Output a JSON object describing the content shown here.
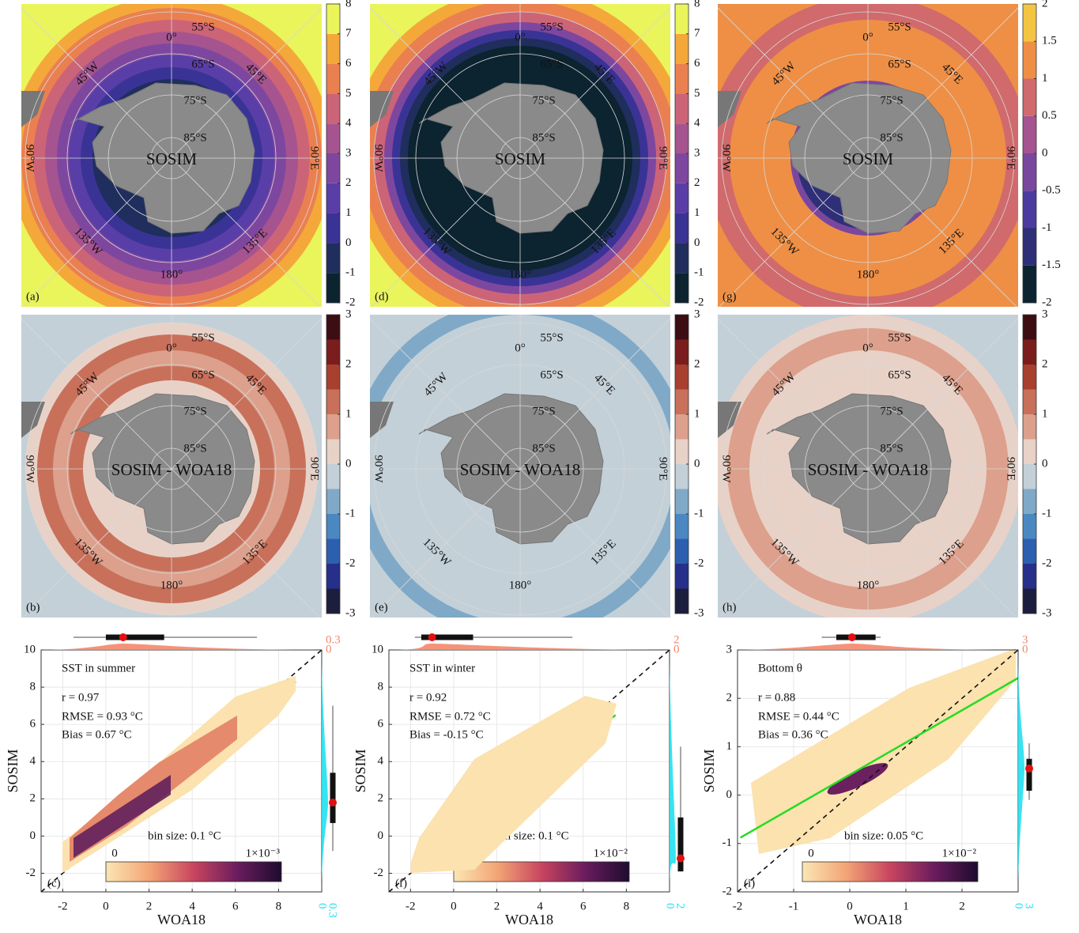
{
  "chart_data": [
    {
      "type": "map",
      "label": "(a)",
      "center_text": "SOSIM",
      "lat_labels": [
        "55°S",
        "65°S",
        "75°S",
        "85°S"
      ],
      "lon_labels": [
        "0°",
        "45°E",
        "90°E",
        "135°E",
        "180°",
        "135°W",
        "90°W",
        "45°W"
      ],
      "colorbar": {
        "ylim": [
          -2,
          8
        ],
        "yticks": [
          -2,
          -1,
          0,
          1,
          2,
          3,
          4,
          5,
          6,
          7,
          8
        ],
        "colors": [
          "#0c2330",
          "#1f2e5c",
          "#3a3396",
          "#5a3ea8",
          "#7e479f",
          "#a55490",
          "#cc6478",
          "#ea8050",
          "#f4a83a",
          "#e9f55b"
        ]
      }
    },
    {
      "type": "map",
      "label": "(b)",
      "center_text": "SOSIM - WOA18",
      "lat_labels": [
        "55°S",
        "65°S",
        "75°S",
        "85°S"
      ],
      "lon_labels": [
        "0°",
        "45°E",
        "90°E",
        "135°E",
        "180°",
        "135°W",
        "90°W",
        "45°W"
      ],
      "colorbar": {
        "ylim": [
          -3,
          3
        ],
        "yticks": [
          -3,
          -2,
          -1,
          0,
          1,
          2,
          3
        ],
        "colors": [
          "#1b1e3d",
          "#262f8a",
          "#2d5fb0",
          "#4b88c2",
          "#7fa9c7",
          "#c3d0d8",
          "#e8d2c8",
          "#dca08c",
          "#c8705a",
          "#a8402f",
          "#7b1d1d",
          "#3c0d12"
        ]
      }
    },
    {
      "type": "scatter",
      "label": "(c)",
      "title": "SST in summer",
      "annotations": [
        "r = 0.97",
        "RMSE = 0.93 °C",
        "Bias = 0.67 °C",
        "bin size: 0.1 °C"
      ],
      "xlabel": "WOA18",
      "ylabel": "SOSIM",
      "xlim": [
        -3,
        10
      ],
      "ylim": [
        -3,
        10
      ],
      "xticks": [
        -2,
        0,
        2,
        4,
        6,
        8
      ],
      "yticks": [
        -2,
        0,
        2,
        4,
        6,
        8,
        10
      ],
      "grid": true,
      "fit": {
        "x": [
          -1.8,
          8.8
        ],
        "values": [
          -0.6,
          8.3
        ],
        "color": "#22dd22"
      },
      "colorbar": {
        "labels": [
          "0",
          "1×10⁻³"
        ],
        "colors": [
          "#fbe6b4",
          "#f3a475",
          "#c8455f",
          "#6a1c5e",
          "#1e0b2e"
        ]
      },
      "top_margin": {
        "ticks": [
          0,
          0.3
        ],
        "color": "#f4876a",
        "box": {
          "whislo": -1.5,
          "q1": 0,
          "med": 0.8,
          "q3": 2.7,
          "whishi": 7
        }
      },
      "right_margin": {
        "ticks": [
          0,
          0.3
        ],
        "color": "#22e0f0",
        "box": {
          "whislo": -0.8,
          "q1": 0.7,
          "med": 1.8,
          "q3": 3.4,
          "whishi": 7
        }
      }
    },
    {
      "type": "map",
      "label": "(d)",
      "center_text": "SOSIM",
      "lat_labels": [
        "55°S",
        "65°S",
        "75°S",
        "85°S"
      ],
      "lon_labels": [
        "0°",
        "45°E",
        "90°E",
        "135°E",
        "180°",
        "135°W",
        "90°W",
        "45°W"
      ],
      "colorbar": {
        "ylim": [
          -2,
          8
        ],
        "yticks": [
          -2,
          -1,
          0,
          1,
          2,
          3,
          4,
          5,
          6,
          7,
          8
        ],
        "colors": [
          "#0c2330",
          "#1f2e5c",
          "#3a3396",
          "#5a3ea8",
          "#7e479f",
          "#a55490",
          "#cc6478",
          "#ea8050",
          "#f4a83a",
          "#e9f55b"
        ]
      }
    },
    {
      "type": "map",
      "label": "(e)",
      "center_text": "SOSIM - WOA18",
      "lat_labels": [
        "55°S",
        "65°S",
        "75°S",
        "85°S"
      ],
      "lon_labels": [
        "0°",
        "45°E",
        "90°E",
        "135°E",
        "180°",
        "135°W",
        "90°W",
        "45°W"
      ],
      "colorbar": {
        "ylim": [
          -3,
          3
        ],
        "yticks": [
          -3,
          -2,
          -1,
          0,
          1,
          2,
          3
        ],
        "colors": [
          "#1b1e3d",
          "#262f8a",
          "#2d5fb0",
          "#4b88c2",
          "#7fa9c7",
          "#c3d0d8",
          "#e8d2c8",
          "#dca08c",
          "#c8705a",
          "#a8402f",
          "#7b1d1d",
          "#3c0d12"
        ]
      }
    },
    {
      "type": "scatter",
      "label": "(f)",
      "title": "SST in winter",
      "annotations": [
        "r = 0.92",
        "RMSE = 0.72 °C",
        "Bias = -0.15 °C",
        "bin size: 0.1 °C"
      ],
      "xlabel": "WOA18",
      "ylabel": "SOSIM",
      "xlim": [
        -3,
        10
      ],
      "ylim": [
        -3,
        10
      ],
      "xticks": [
        -2,
        0,
        2,
        4,
        6,
        8
      ],
      "yticks": [
        -2,
        0,
        2,
        4,
        6,
        8,
        10
      ],
      "grid": true,
      "fit": {
        "x": [
          -1.9,
          7.5
        ],
        "values": [
          -1.9,
          6.5
        ],
        "color": "#22dd22"
      },
      "colorbar": {
        "labels": [
          "0",
          "1×10⁻²"
        ],
        "colors": [
          "#fbe6b4",
          "#f3a475",
          "#c8455f",
          "#6a1c5e",
          "#1e0b2e"
        ]
      },
      "top_margin": {
        "ticks": [
          0,
          2
        ],
        "color": "#f4876a",
        "box": {
          "whislo": -1.8,
          "q1": -1.5,
          "med": -1.0,
          "q3": 0.9,
          "whishi": 5.5
        }
      },
      "right_margin": {
        "ticks": [
          0,
          2
        ],
        "color": "#22e0f0",
        "box": {
          "whislo": -1.9,
          "q1": -1.9,
          "med": -1.2,
          "q3": 1.0,
          "whishi": 4.8
        }
      }
    },
    {
      "type": "map",
      "label": "(g)",
      "center_text": "SOSIM",
      "lat_labels": [
        "55°S",
        "65°S",
        "75°S",
        "85°S"
      ],
      "lon_labels": [
        "0°",
        "45°E",
        "90°E",
        "135°E",
        "180°",
        "135°W",
        "90°W",
        "45°W"
      ],
      "colorbar": {
        "ylim": [
          -2,
          2
        ],
        "yticks": [
          -2,
          -1.5,
          -1,
          -0.5,
          0,
          0.5,
          1,
          1.5,
          2
        ],
        "colors": [
          "#0c2330",
          "#2e2f77",
          "#4b3b9f",
          "#7a479f",
          "#a55490",
          "#d06a6c",
          "#ee8f45",
          "#f4c542"
        ]
      }
    },
    {
      "type": "map",
      "label": "(h)",
      "center_text": "SOSIM - WOA18",
      "lat_labels": [
        "55°S",
        "65°S",
        "75°S",
        "85°S"
      ],
      "lon_labels": [
        "0°",
        "45°E",
        "90°E",
        "135°E",
        "180°",
        "135°W",
        "90°W",
        "45°W"
      ],
      "colorbar": {
        "ylim": [
          -3,
          3
        ],
        "yticks": [
          -3,
          -2,
          -1,
          0,
          1,
          2,
          3
        ],
        "colors": [
          "#1b1e3d",
          "#262f8a",
          "#2d5fb0",
          "#4b88c2",
          "#7fa9c7",
          "#c3d0d8",
          "#e8d2c8",
          "#dca08c",
          "#c8705a",
          "#a8402f",
          "#7b1d1d",
          "#3c0d12"
        ]
      }
    },
    {
      "type": "scatter",
      "label": "(i)",
      "title": "Bottom θ",
      "annotations": [
        "r = 0.88",
        "RMSE = 0.44 °C",
        "Bias = 0.36 °C",
        "bin size: 0.05 °C"
      ],
      "xlabel": "WOA18",
      "ylabel": "SOSIM",
      "xlim": [
        -2,
        3
      ],
      "ylim": [
        -2,
        3
      ],
      "xticks": [
        -2,
        -1,
        0,
        1,
        2
      ],
      "yticks": [
        -2,
        -1,
        0,
        1,
        2,
        3
      ],
      "grid": true,
      "fit": {
        "x": [
          -1.95,
          3
        ],
        "values": [
          -0.88,
          2.42
        ],
        "color": "#22dd22"
      },
      "colorbar": {
        "labels": [
          "0",
          "1×10⁻²"
        ],
        "colors": [
          "#fbe6b4",
          "#f3a475",
          "#c8455f",
          "#6a1c5e",
          "#1e0b2e"
        ]
      },
      "top_margin": {
        "ticks": [
          0,
          3
        ],
        "color": "#f4876a",
        "box": {
          "whislo": -0.5,
          "q1": -0.24,
          "med": 0.04,
          "q3": 0.46,
          "whishi": 0.55
        }
      },
      "right_margin": {
        "ticks": [
          0,
          3
        ],
        "color": "#22e0f0",
        "box": {
          "whislo": -0.1,
          "q1": 0.09,
          "med": 0.55,
          "q3": 0.75,
          "whishi": 1.07
        }
      }
    }
  ]
}
